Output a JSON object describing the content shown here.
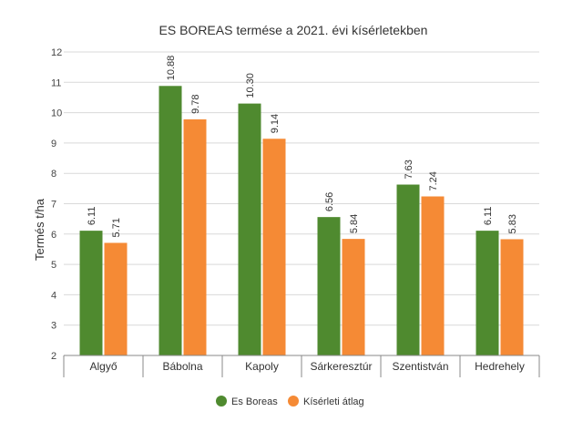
{
  "chart_data": {
    "type": "bar",
    "title": "ES BOREAS termése a 2021. évi kísérletekben",
    "xlabel": "",
    "ylabel": "Termés t/ha",
    "ylim": [
      2,
      12
    ],
    "yticks": [
      2,
      3,
      4,
      5,
      6,
      7,
      8,
      9,
      10,
      11,
      12
    ],
    "grid": true,
    "legend_position": "bottom",
    "categories": [
      "Algyő",
      "Bábolna",
      "Kapoly",
      "Sárkeresztúr",
      "Szentistván",
      "Hedrehely"
    ],
    "series": [
      {
        "name": "Es Boreas",
        "color": "#4f8a2f",
        "values": [
          6.11,
          10.88,
          10.3,
          6.56,
          7.63,
          6.11
        ],
        "labels": [
          "6.11",
          "10.88",
          "10.30",
          "6.56",
          "7.63",
          "6.11"
        ]
      },
      {
        "name": "Kísérleti átlag",
        "color": "#f58a35",
        "values": [
          5.71,
          9.78,
          9.14,
          5.84,
          7.24,
          5.83
        ],
        "labels": [
          "5.71",
          "9.78",
          "9.14",
          "5.84",
          "7.24",
          "5.83"
        ]
      }
    ]
  }
}
